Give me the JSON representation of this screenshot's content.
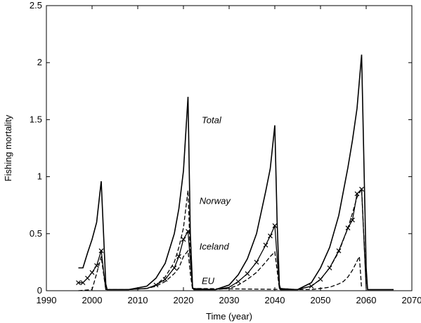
{
  "chart_data": {
    "type": "line",
    "title": "",
    "xlabel": "Time (year)",
    "ylabel": "Fishing mortality",
    "xlim": [
      1990,
      2070
    ],
    "ylim": [
      0,
      2.5
    ],
    "xticks": [
      "1990",
      "2000",
      "2010",
      "2020",
      "2030",
      "2040",
      "2050",
      "2060",
      "2070"
    ],
    "yticks": [
      "0",
      "0.5",
      "1",
      "1.5",
      "2",
      "2.5"
    ],
    "grid": false,
    "annotations": [
      {
        "text": "Total",
        "x": 2024,
        "y": 1.47
      },
      {
        "text": "Norway",
        "x": 2023.5,
        "y": 0.76
      },
      {
        "text": "Iceland",
        "x": 2023.5,
        "y": 0.36
      },
      {
        "text": "EU",
        "x": 2024,
        "y": 0.06
      }
    ],
    "series": [
      {
        "label": "Total",
        "style": "solid",
        "x": [
          1997,
          1998,
          1999,
          2000,
          2001,
          2002,
          2003,
          2003.3,
          2008,
          2012,
          2014,
          2016,
          2018,
          2019,
          2020,
          2021,
          2021.5,
          2022,
          2022.3,
          2027,
          2030,
          2032,
          2034,
          2036,
          2038,
          2039,
          2040,
          2040.5,
          2041,
          2041.3,
          2045,
          2048,
          2050,
          2052,
          2054,
          2056,
          2057,
          2058,
          2059,
          2060,
          2060.3,
          2066
        ],
        "y": [
          0.2,
          0.2,
          0.33,
          0.45,
          0.6,
          0.96,
          0.06,
          0.01,
          0.01,
          0.04,
          0.11,
          0.24,
          0.5,
          0.72,
          1.05,
          1.7,
          0.5,
          0.03,
          0.01,
          0.01,
          0.05,
          0.14,
          0.28,
          0.5,
          0.87,
          1.07,
          1.45,
          0.6,
          0.05,
          0.01,
          0.01,
          0.07,
          0.2,
          0.38,
          0.66,
          1.08,
          1.32,
          1.6,
          2.07,
          0.2,
          0.01,
          0.01
        ]
      },
      {
        "label": "Norway",
        "style": "dashed",
        "x": [
          2008,
          2012,
          2014,
          2016,
          2018,
          2019,
          2020,
          2021,
          2021.5,
          2022,
          2045,
          2048,
          2050,
          2052,
          2054,
          2056,
          2057,
          2058,
          2059,
          2060
        ],
        "y": [
          0.01,
          0.02,
          0.05,
          0.12,
          0.25,
          0.38,
          0.55,
          0.88,
          0.3,
          0.02,
          0.01,
          0.04,
          0.1,
          0.2,
          0.34,
          0.55,
          0.68,
          0.82,
          0.89,
          0.05
        ]
      },
      {
        "label": "Iceland",
        "style": "solid-x",
        "x": [
          1997,
          1998,
          1999,
          2000,
          2001,
          2002,
          2003,
          2008,
          2012,
          2014,
          2016,
          2018,
          2019,
          2020,
          2021,
          2022,
          2027,
          2030,
          2032,
          2034,
          2036,
          2038,
          2039,
          2040,
          2041,
          2045,
          2048,
          2050,
          2052,
          2054,
          2056,
          2057,
          2058,
          2059,
          2060
        ],
        "y": [
          0.07,
          0.07,
          0.11,
          0.16,
          0.22,
          0.35,
          0.01,
          0.01,
          0.02,
          0.05,
          0.1,
          0.2,
          0.3,
          0.45,
          0.52,
          0.02,
          0.01,
          0.03,
          0.08,
          0.15,
          0.25,
          0.4,
          0.48,
          0.57,
          0.02,
          0.01,
          0.04,
          0.1,
          0.2,
          0.35,
          0.55,
          0.62,
          0.85,
          0.89,
          0.02
        ]
      },
      {
        "label": "EU",
        "style": "dashed",
        "x": [
          1997,
          2000,
          2001,
          2002,
          2002.5,
          2003,
          2008,
          2012,
          2014,
          2016,
          2018,
          2019,
          2020,
          2021,
          2021.5,
          2022,
          2027,
          2030,
          2032,
          2034,
          2036,
          2038,
          2039,
          2040,
          2041,
          2045,
          2048,
          2050,
          2052,
          2054,
          2055,
          2056,
          2057,
          2058,
          2058.5,
          2059
        ],
        "y": [
          0.0,
          0.01,
          0.15,
          0.3,
          0.15,
          0.01,
          0.01,
          0.02,
          0.04,
          0.08,
          0.15,
          0.2,
          0.3,
          0.35,
          0.15,
          0.01,
          0.01,
          0.02,
          0.05,
          0.1,
          0.16,
          0.25,
          0.3,
          0.34,
          0.02,
          0.01,
          0.01,
          0.02,
          0.03,
          0.06,
          0.08,
          0.12,
          0.18,
          0.26,
          0.3,
          0.02
        ]
      }
    ]
  }
}
